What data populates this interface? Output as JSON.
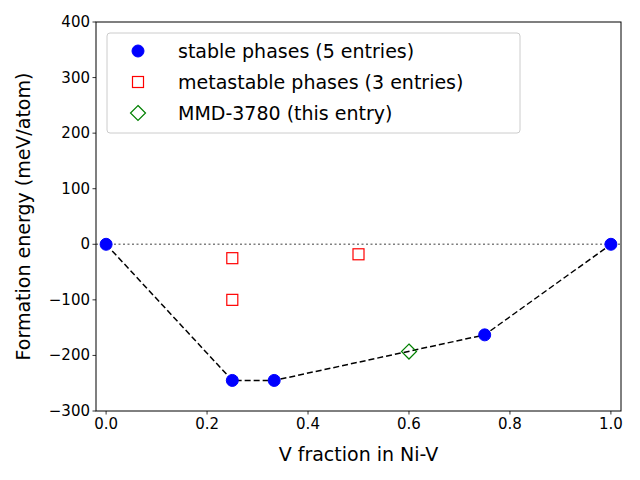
{
  "chart_data": {
    "type": "scatter",
    "x_label": "V fraction in Ni-V",
    "y_label": "Formation energy (meV/atom)",
    "xlim": [
      -0.02,
      1.02
    ],
    "ylim": [
      -300,
      400
    ],
    "xticks": [
      {
        "value": 0,
        "label": "0.0"
      },
      {
        "value": 0.2,
        "label": "0.2"
      },
      {
        "value": 0.4,
        "label": "0.4"
      },
      {
        "value": 0.6,
        "label": "0.6"
      },
      {
        "value": 0.8,
        "label": "0.8"
      },
      {
        "value": 1,
        "label": "1.0"
      }
    ],
    "yticks": [
      {
        "value": -300,
        "label": "−300"
      },
      {
        "value": -200,
        "label": "−200"
      },
      {
        "value": -100,
        "label": "−100"
      },
      0,
      100,
      200,
      300,
      400
    ],
    "grid": false,
    "legend": "upper left",
    "reference_lines": [
      {
        "y": 0,
        "line_style": "dotted"
      }
    ],
    "series": [
      {
        "name": "stable phases (5 entries)",
        "color": "#0000ff",
        "marker": "circle",
        "line_style": "dashed",
        "x": [
          0,
          0.25,
          0.333,
          0.75,
          1
        ],
        "values": [
          0,
          -245,
          -245,
          -163,
          0
        ]
      },
      {
        "name": "metastable phases (3 entries)",
        "color": "#ff0000",
        "marker": "square_open",
        "x": [
          0.25,
          0.25,
          0.5
        ],
        "values": [
          -25,
          -100,
          -18
        ]
      },
      {
        "name": "MMD-3780 (this entry)",
        "color": "#008000",
        "marker": "diamond_open",
        "x": [
          0.6
        ],
        "values": [
          -193
        ]
      }
    ]
  }
}
